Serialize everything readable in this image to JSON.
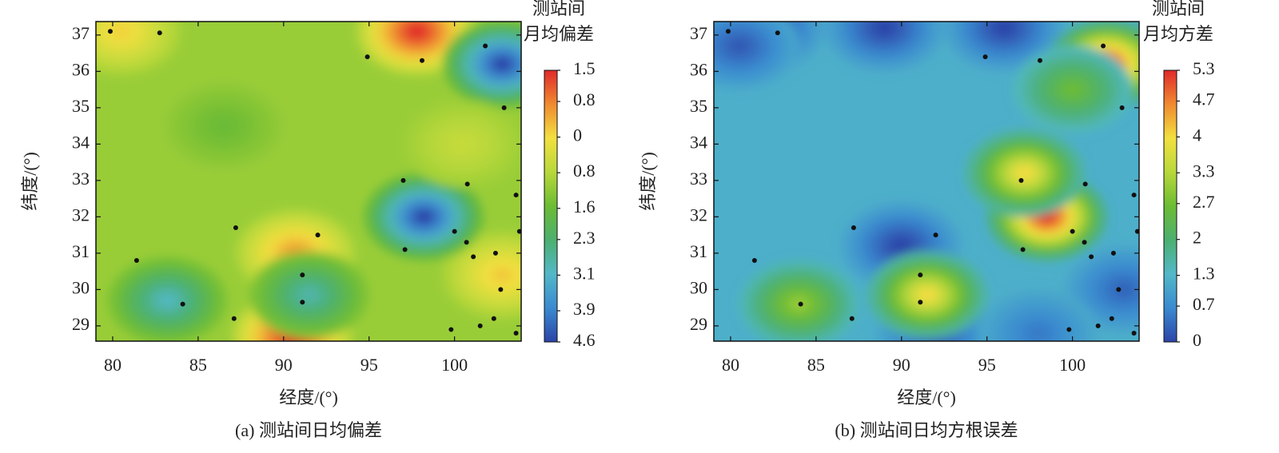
{
  "chart_data": [
    {
      "type": "contour",
      "title": "(a) 测站间日均偏差",
      "x_label": "经度/(°)",
      "y_label": "纬度/(°)",
      "xlim": [
        79.02,
        103.9
      ],
      "ylim": [
        28.58,
        37.37
      ],
      "xticks": [
        80,
        85,
        90,
        95,
        100
      ],
      "yticks": [
        29,
        30,
        31,
        32,
        33,
        34,
        35,
        36,
        37
      ],
      "colorbar": {
        "title": [
          "测站间",
          "月均偏差"
        ],
        "ticks": [
          1.5,
          0.8,
          0,
          {
            "value": -0.8,
            "label": "0.8"
          },
          {
            "value": -1.6,
            "label": "1.6"
          },
          {
            "value": -2.3,
            "label": "2.3"
          },
          {
            "value": -3.1,
            "label": "3.1"
          },
          {
            "value": -3.9,
            "label": "3.9"
          },
          {
            "value": -4.6,
            "label": "4.6"
          }
        ],
        "colors": [
          "#e02a2a",
          "#f08a30",
          "#f2e040",
          "#b8d83a",
          "#6cbc34",
          "#4cb070",
          "#52b8c8",
          "#3a8ad0",
          "#2c44a8"
        ]
      },
      "background_value": -1.1,
      "spots": {
        "x": [
          97.8,
          90.5,
          90.7,
          102.8,
          80.5,
          98.2,
          102.8,
          83.2,
          91.5,
          86.5,
          100.5
        ],
        "y": [
          37.1,
          28.7,
          31.0,
          30.4,
          37.1,
          32.0,
          36.2,
          29.7,
          29.85,
          34.5,
          34.0
        ],
        "values": [
          1.5,
          1.5,
          0.6,
          0.2,
          0.1,
          -4.6,
          -4.6,
          -3.0,
          -2.8,
          -1.6,
          -0.6
        ]
      },
      "stations": {
        "x": [
          79.86,
          82.75,
          94.9,
          98.1,
          101.8,
          102.9,
          97.0,
          100.75,
          103.6,
          87.2,
          92.0,
          100.0,
          103.8,
          97.1,
          81.4,
          101.1,
          102.4,
          100.7,
          91.1,
          102.7,
          84.1,
          91.1,
          87.1,
          102.3,
          99.8,
          101.5,
          103.6
        ],
        "y": [
          37.1,
          37.06,
          36.4,
          36.3,
          36.7,
          35.0,
          33.0,
          32.9,
          32.6,
          31.7,
          31.5,
          31.6,
          31.6,
          31.1,
          30.8,
          30.9,
          31.0,
          31.3,
          30.4,
          30.0,
          29.6,
          29.65,
          29.2,
          29.2,
          28.9,
          29.0,
          28.8
        ]
      }
    },
    {
      "type": "contour",
      "title": "(b) 测站间日均方根误差",
      "x_label": "经度/(°)",
      "y_label": "纬度/(°)",
      "xlim": [
        79.02,
        103.9
      ],
      "ylim": [
        28.58,
        37.37
      ],
      "xticks": [
        80,
        85,
        90,
        95,
        100
      ],
      "yticks": [
        29,
        30,
        31,
        32,
        33,
        34,
        35,
        36,
        37
      ],
      "colorbar": {
        "title": [
          "测站间",
          "月均方差"
        ],
        "ticks": [
          5.3,
          4.7,
          4.0,
          3.3,
          2.7,
          2.0,
          1.3,
          0.7,
          0
        ],
        "colors": [
          "#e02a2a",
          "#f08a30",
          "#f2e040",
          "#b8d83a",
          "#6cbc34",
          "#4cb070",
          "#52b8c8",
          "#3a8ad0",
          "#2c44a8"
        ]
      },
      "background_value": 1.2,
      "spots": {
        "x": [
          82.0,
          89.0,
          96.0,
          80.5,
          90.0,
          92.0,
          103.0,
          98.0,
          98.5,
          102.0,
          84.0,
          91.5,
          97.2,
          100.0
        ],
        "y": [
          37.2,
          37.2,
          37.2,
          36.7,
          31.2,
          28.8,
          30.0,
          28.8,
          32.0,
          36.2,
          29.6,
          29.85,
          33.2,
          35.5
        ],
        "values": [
          0,
          0,
          0,
          0.2,
          0,
          0.2,
          0.3,
          0.5,
          5.3,
          5.3,
          3.0,
          4.0,
          4.0,
          2.6
        ]
      },
      "stations": {
        "x": [
          79.86,
          82.75,
          94.9,
          98.1,
          101.8,
          102.9,
          97.0,
          100.75,
          103.6,
          87.2,
          92.0,
          100.0,
          103.8,
          97.1,
          81.4,
          101.1,
          102.4,
          100.7,
          91.1,
          102.7,
          84.1,
          91.1,
          87.1,
          102.3,
          99.8,
          101.5,
          103.6
        ],
        "y": [
          37.1,
          37.06,
          36.4,
          36.3,
          36.7,
          35.0,
          33.0,
          32.9,
          32.6,
          31.7,
          31.5,
          31.6,
          31.6,
          31.1,
          30.8,
          30.9,
          31.0,
          31.3,
          30.4,
          30.0,
          29.6,
          29.65,
          29.2,
          29.2,
          28.9,
          29.0,
          28.8
        ]
      }
    }
  ]
}
